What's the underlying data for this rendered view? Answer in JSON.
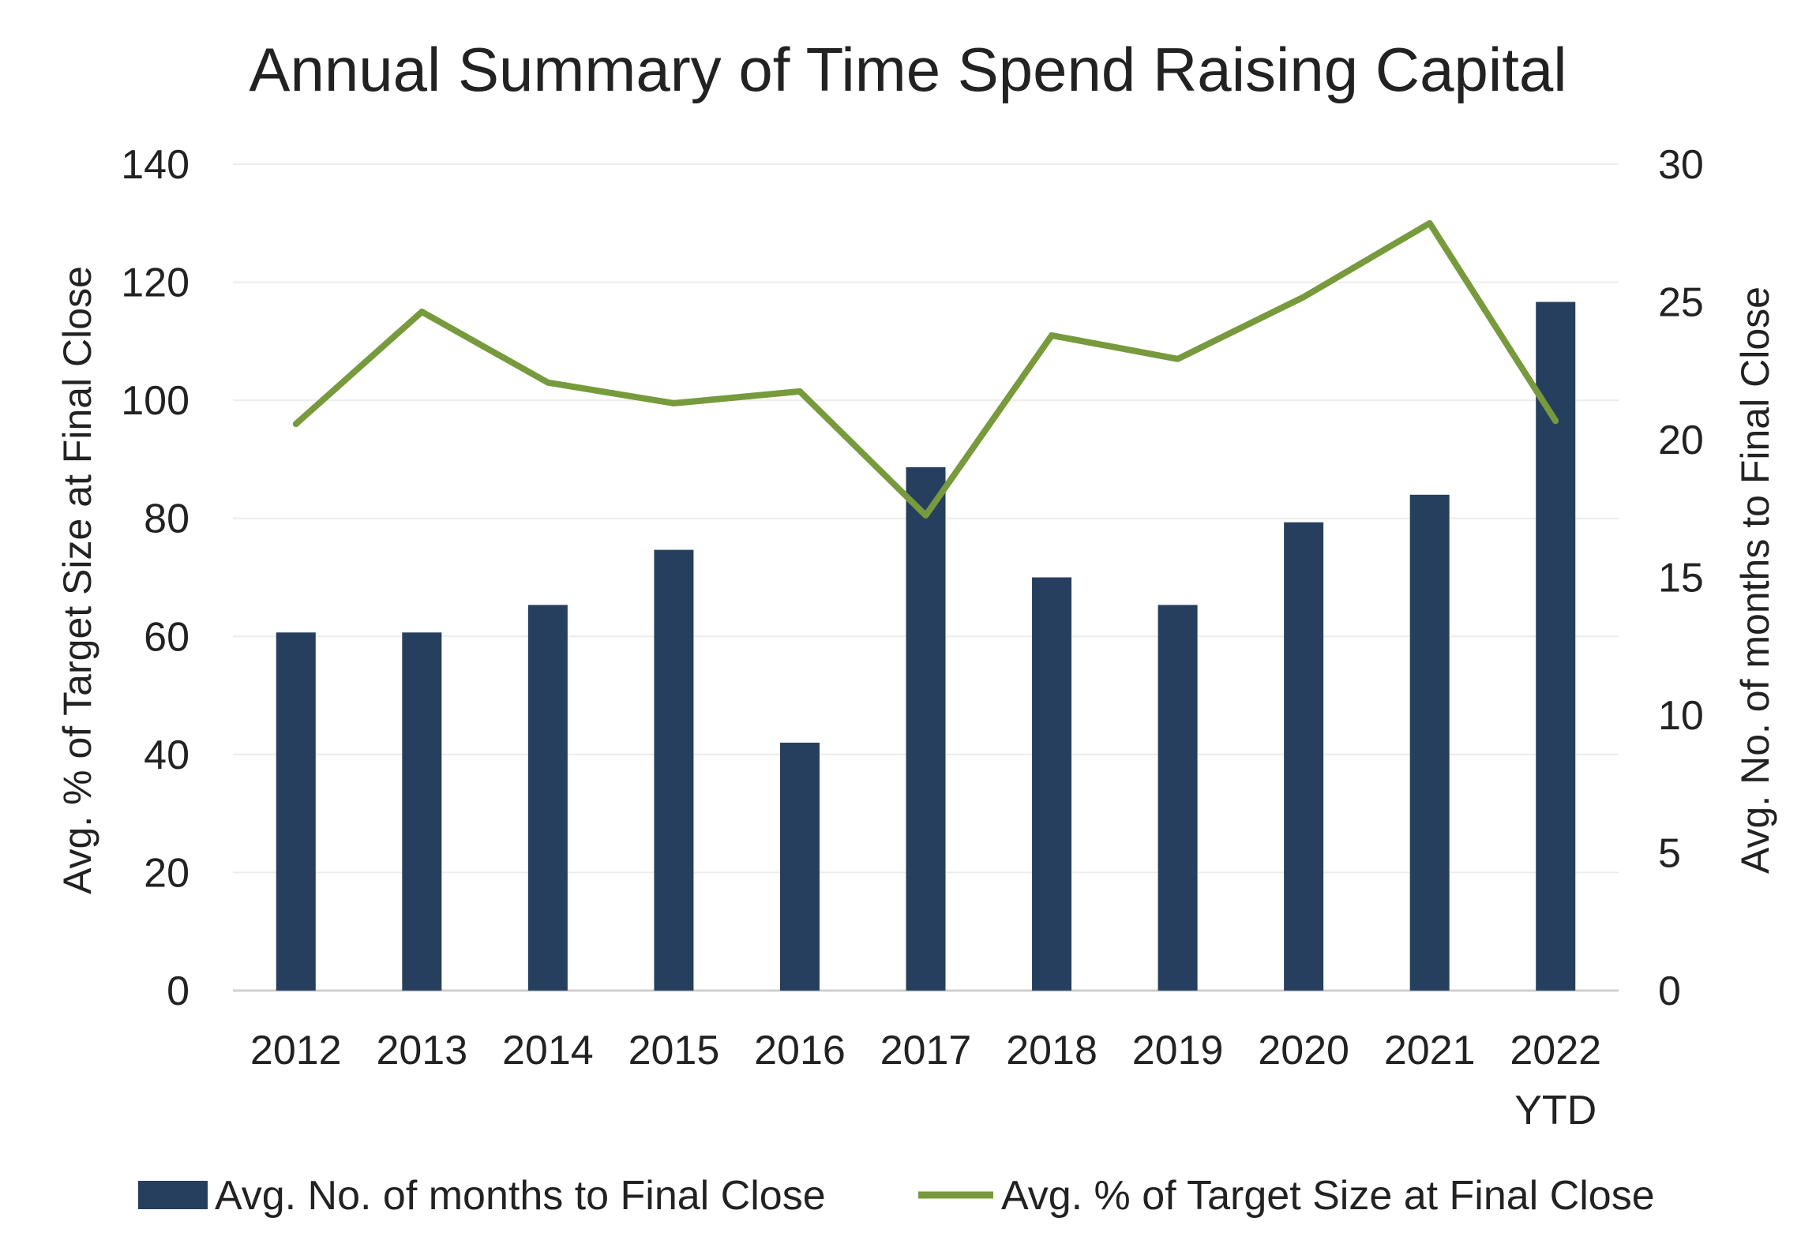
{
  "chart_data": {
    "type": "bar",
    "title": "Annual Summary of Time Spend Raising Capital",
    "categories": [
      "2012",
      "2013",
      "2014",
      "2015",
      "2016",
      "2017",
      "2018",
      "2019",
      "2020",
      "2021",
      "2022\nYTD"
    ],
    "series": [
      {
        "name": "Avg. No. of months to Final Close",
        "type": "bar",
        "axis": "right",
        "color": "#263f5e",
        "values": [
          13,
          13,
          14,
          16,
          9,
          19,
          15,
          14,
          17,
          18,
          25
        ]
      },
      {
        "name": "Avg. % of Target Size at Final Close",
        "type": "line",
        "axis": "left",
        "color": "#779a3c",
        "values": [
          96,
          115,
          103,
          99.5,
          101.5,
          80.5,
          111,
          107,
          117.5,
          130,
          96.5
        ]
      }
    ],
    "y_left": {
      "label": "Avg. % of Target Size at Final Close",
      "lim": [
        0,
        140
      ],
      "ticks": [
        0,
        20,
        40,
        60,
        80,
        100,
        120,
        140
      ]
    },
    "y_right": {
      "label": "Avg. No. of months to Final Close",
      "lim": [
        0,
        30
      ],
      "ticks": [
        0,
        5,
        10,
        15,
        20,
        25,
        30
      ]
    },
    "grid": true,
    "legend_position": "bottom"
  }
}
